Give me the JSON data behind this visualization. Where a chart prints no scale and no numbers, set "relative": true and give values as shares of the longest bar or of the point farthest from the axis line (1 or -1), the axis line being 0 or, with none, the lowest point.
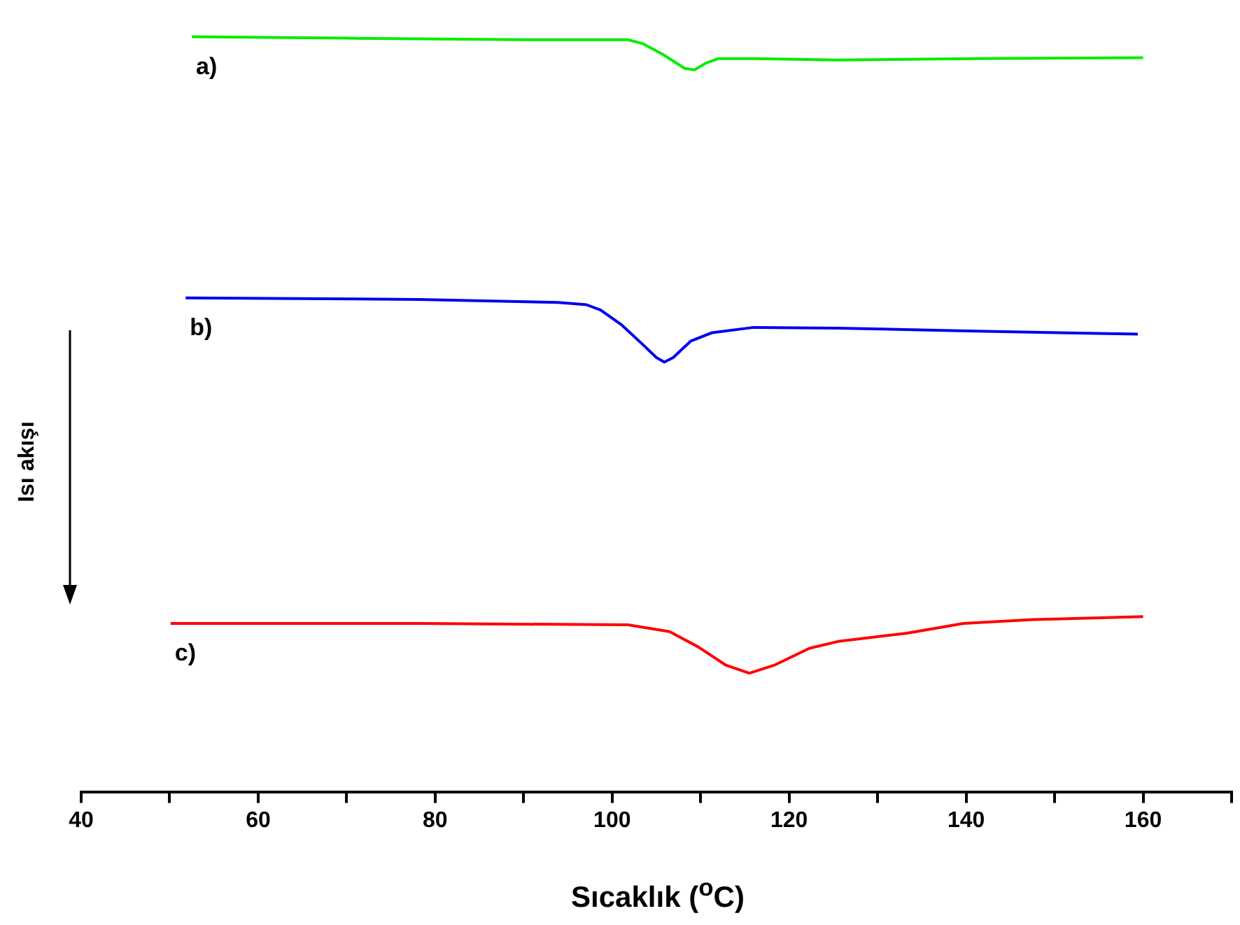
{
  "chart_data": {
    "type": "line",
    "relative": true,
    "xlabel": "Sıcaklık ($^{o}$C)",
    "ylabel": "Isı akışı",
    "xlim": [
      40,
      170
    ],
    "xticks": [
      40,
      {
        "value": 50,
        "label": null
      },
      60,
      {
        "value": 70,
        "label": null
      },
      80,
      {
        "value": 90,
        "label": null
      },
      100,
      {
        "value": 110,
        "label": null
      },
      120,
      {
        "value": 130,
        "label": null
      },
      140,
      {
        "value": 150,
        "label": null
      },
      160,
      {
        "value": 170,
        "label": null
      }
    ],
    "grid": false,
    "legend": false,
    "marker": "none",
    "line_style": "solid",
    "series": [
      {
        "name": "a)",
        "color": "#00ee00",
        "x": [
          52.5,
          70,
          90,
          101.8,
          103.4,
          105.8,
          108.2,
          109.3,
          110.6,
          112,
          116,
          125.5,
          141.2,
          160
        ],
        "values": [
          1.0,
          0.998,
          0.996,
          0.996,
          0.991,
          0.976,
          0.958,
          0.956,
          0.965,
          0.971,
          0.971,
          0.969,
          0.971,
          0.972
        ]
      },
      {
        "name": "b)",
        "color": "#0000ee",
        "x": [
          51.8,
          78.2,
          93.9,
          97.1,
          98.7,
          101,
          103.4,
          105,
          105.9,
          106.9,
          108.9,
          111.3,
          116,
          125.5,
          141.2,
          159.4
        ],
        "values": [
          0.654,
          0.652,
          0.648,
          0.645,
          0.638,
          0.619,
          0.593,
          0.575,
          0.569,
          0.575,
          0.597,
          0.608,
          0.615,
          0.614,
          0.61,
          0.606
        ]
      },
      {
        "name": "c)",
        "color": "#ff0000",
        "x": [
          50.1,
          78.2,
          101.8,
          106.5,
          109.7,
          112.8,
          115.5,
          118.4,
          122.3,
          125.5,
          133.3,
          139.7,
          147.5,
          160
        ],
        "values": [
          0.223,
          0.223,
          0.221,
          0.212,
          0.192,
          0.168,
          0.157,
          0.168,
          0.19,
          0.199,
          0.21,
          0.223,
          0.228,
          0.232
        ]
      }
    ]
  }
}
